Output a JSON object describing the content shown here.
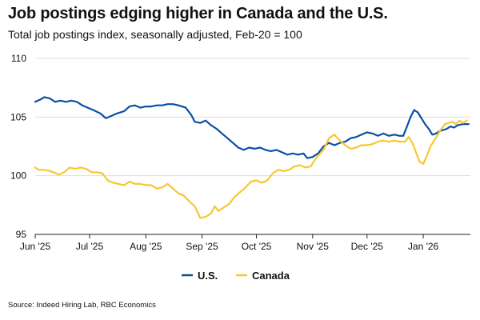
{
  "title": "Job postings edging higher in Canada and the U.S.",
  "subtitle": "Total job postings index, seasonally adjusted, Feb-20 = 100",
  "source": "Source: Indeed Hiring Lab, RBC Economics",
  "colors": {
    "us": "#0a4fa3",
    "canada": "#f7c730",
    "grid": "#dcdcdc",
    "axis": "#222222"
  },
  "chart_data": {
    "type": "line",
    "title": "Job postings edging higher in Canada and the U.S.",
    "subtitle": "Total job postings index, seasonally adjusted, Feb-20 = 100",
    "xlabel": "",
    "ylabel": "",
    "ylim": [
      95,
      110
    ],
    "yticks": [
      95,
      100,
      105,
      110
    ],
    "xlim": [
      0,
      240
    ],
    "x_unit": "days since Jun 1 2025",
    "xticks": [
      {
        "label": "Jun '25",
        "x": 0
      },
      {
        "label": "Jul '25",
        "x": 30
      },
      {
        "label": "Aug '25",
        "x": 61
      },
      {
        "label": "Sep '25",
        "x": 92
      },
      {
        "label": "Oct '25",
        "x": 122
      },
      {
        "label": "Nov '25",
        "x": 153
      },
      {
        "label": "Dec '25",
        "x": 183
      },
      {
        "label": "Jan '26",
        "x": 214
      }
    ],
    "grid": true,
    "legend_position": "bottom-center",
    "series": [
      {
        "name": "U.S.",
        "color_key": "us",
        "points": [
          [
            0,
            106.3
          ],
          [
            3,
            106.5
          ],
          [
            5,
            106.7
          ],
          [
            8,
            106.6
          ],
          [
            11,
            106.3
          ],
          [
            14,
            106.4
          ],
          [
            17,
            106.3
          ],
          [
            20,
            106.4
          ],
          [
            23,
            106.3
          ],
          [
            26,
            106.0
          ],
          [
            29,
            105.8
          ],
          [
            32,
            105.6
          ],
          [
            36,
            105.3
          ],
          [
            39,
            104.9
          ],
          [
            42,
            105.1
          ],
          [
            45,
            105.3
          ],
          [
            49,
            105.5
          ],
          [
            52,
            105.9
          ],
          [
            55,
            106.0
          ],
          [
            58,
            105.8
          ],
          [
            61,
            105.9
          ],
          [
            64,
            105.9
          ],
          [
            67,
            106.0
          ],
          [
            70,
            106.0
          ],
          [
            73,
            106.1
          ],
          [
            76,
            106.1
          ],
          [
            79,
            106.0
          ],
          [
            83,
            105.8
          ],
          [
            86,
            105.2
          ],
          [
            88,
            104.6
          ],
          [
            91,
            104.5
          ],
          [
            94,
            104.7
          ],
          [
            97,
            104.3
          ],
          [
            100,
            104.0
          ],
          [
            103,
            103.6
          ],
          [
            106,
            103.2
          ],
          [
            109,
            102.8
          ],
          [
            112,
            102.4
          ],
          [
            115,
            102.2
          ],
          [
            118,
            102.4
          ],
          [
            121,
            102.3
          ],
          [
            124,
            102.4
          ],
          [
            127,
            102.2
          ],
          [
            130,
            102.1
          ],
          [
            133,
            102.2
          ],
          [
            136,
            102.0
          ],
          [
            139,
            101.8
          ],
          [
            142,
            101.9
          ],
          [
            145,
            101.8
          ],
          [
            148,
            101.9
          ],
          [
            150,
            101.5
          ],
          [
            153,
            101.6
          ],
          [
            156,
            101.9
          ],
          [
            159,
            102.5
          ],
          [
            162,
            102.8
          ],
          [
            165,
            102.6
          ],
          [
            168,
            102.8
          ],
          [
            171,
            102.9
          ],
          [
            174,
            103.2
          ],
          [
            177,
            103.3
          ],
          [
            180,
            103.5
          ],
          [
            183,
            103.7
          ],
          [
            186,
            103.6
          ],
          [
            189,
            103.4
          ],
          [
            192,
            103.6
          ],
          [
            195,
            103.4
          ],
          [
            198,
            103.5
          ],
          [
            201,
            103.4
          ],
          [
            203,
            103.4
          ],
          [
            205,
            104.2
          ],
          [
            207,
            105.0
          ],
          [
            209,
            105.6
          ],
          [
            211,
            105.4
          ],
          [
            213,
            104.9
          ],
          [
            215,
            104.4
          ],
          [
            217,
            104.0
          ],
          [
            219,
            103.5
          ],
          [
            221,
            103.6
          ],
          [
            223,
            103.8
          ],
          [
            225,
            103.9
          ],
          [
            227,
            104.0
          ],
          [
            229,
            104.2
          ],
          [
            231,
            104.1
          ],
          [
            233,
            104.3
          ],
          [
            236,
            104.4
          ],
          [
            239,
            104.4
          ]
        ]
      },
      {
        "name": "Canada",
        "color_key": "canada",
        "points": [
          [
            0,
            100.7
          ],
          [
            2,
            100.5
          ],
          [
            5,
            100.5
          ],
          [
            8,
            100.4
          ],
          [
            10,
            100.3
          ],
          [
            13,
            100.1
          ],
          [
            16,
            100.3
          ],
          [
            19,
            100.7
          ],
          [
            22,
            100.6
          ],
          [
            25,
            100.7
          ],
          [
            28,
            100.6
          ],
          [
            31,
            100.3
          ],
          [
            34,
            100.3
          ],
          [
            37,
            100.2
          ],
          [
            40,
            99.6
          ],
          [
            43,
            99.4
          ],
          [
            46,
            99.3
          ],
          [
            49,
            99.2
          ],
          [
            52,
            99.5
          ],
          [
            55,
            99.3
          ],
          [
            58,
            99.3
          ],
          [
            61,
            99.2
          ],
          [
            64,
            99.2
          ],
          [
            67,
            98.9
          ],
          [
            70,
            99.0
          ],
          [
            73,
            99.3
          ],
          [
            76,
            98.9
          ],
          [
            79,
            98.5
          ],
          [
            82,
            98.3
          ],
          [
            85,
            97.8
          ],
          [
            88,
            97.4
          ],
          [
            91,
            96.4
          ],
          [
            94,
            96.5
          ],
          [
            97,
            96.8
          ],
          [
            99,
            97.4
          ],
          [
            101,
            97.0
          ],
          [
            104,
            97.3
          ],
          [
            107,
            97.6
          ],
          [
            110,
            98.2
          ],
          [
            113,
            98.6
          ],
          [
            116,
            99.0
          ],
          [
            119,
            99.5
          ],
          [
            122,
            99.6
          ],
          [
            125,
            99.4
          ],
          [
            128,
            99.6
          ],
          [
            131,
            100.2
          ],
          [
            134,
            100.5
          ],
          [
            137,
            100.4
          ],
          [
            140,
            100.5
          ],
          [
            143,
            100.8
          ],
          [
            146,
            100.9
          ],
          [
            149,
            100.7
          ],
          [
            152,
            100.8
          ],
          [
            154,
            101.3
          ],
          [
            156,
            101.7
          ],
          [
            159,
            102.2
          ],
          [
            162,
            103.2
          ],
          [
            165,
            103.5
          ],
          [
            168,
            103.0
          ],
          [
            171,
            102.6
          ],
          [
            174,
            102.3
          ],
          [
            177,
            102.4
          ],
          [
            180,
            102.6
          ],
          [
            183,
            102.6
          ],
          [
            186,
            102.7
          ],
          [
            189,
            102.9
          ],
          [
            192,
            103.0
          ],
          [
            195,
            102.9
          ],
          [
            198,
            103.0
          ],
          [
            201,
            102.9
          ],
          [
            204,
            102.9
          ],
          [
            206,
            103.3
          ],
          [
            208,
            102.8
          ],
          [
            210,
            102.0
          ],
          [
            212,
            101.2
          ],
          [
            214,
            101.0
          ],
          [
            216,
            101.7
          ],
          [
            218,
            102.5
          ],
          [
            220,
            103.0
          ],
          [
            222,
            103.5
          ],
          [
            224,
            104.0
          ],
          [
            226,
            104.4
          ],
          [
            228,
            104.5
          ],
          [
            230,
            104.6
          ],
          [
            232,
            104.4
          ],
          [
            234,
            104.7
          ],
          [
            236,
            104.5
          ],
          [
            238,
            104.7
          ]
        ]
      }
    ]
  }
}
